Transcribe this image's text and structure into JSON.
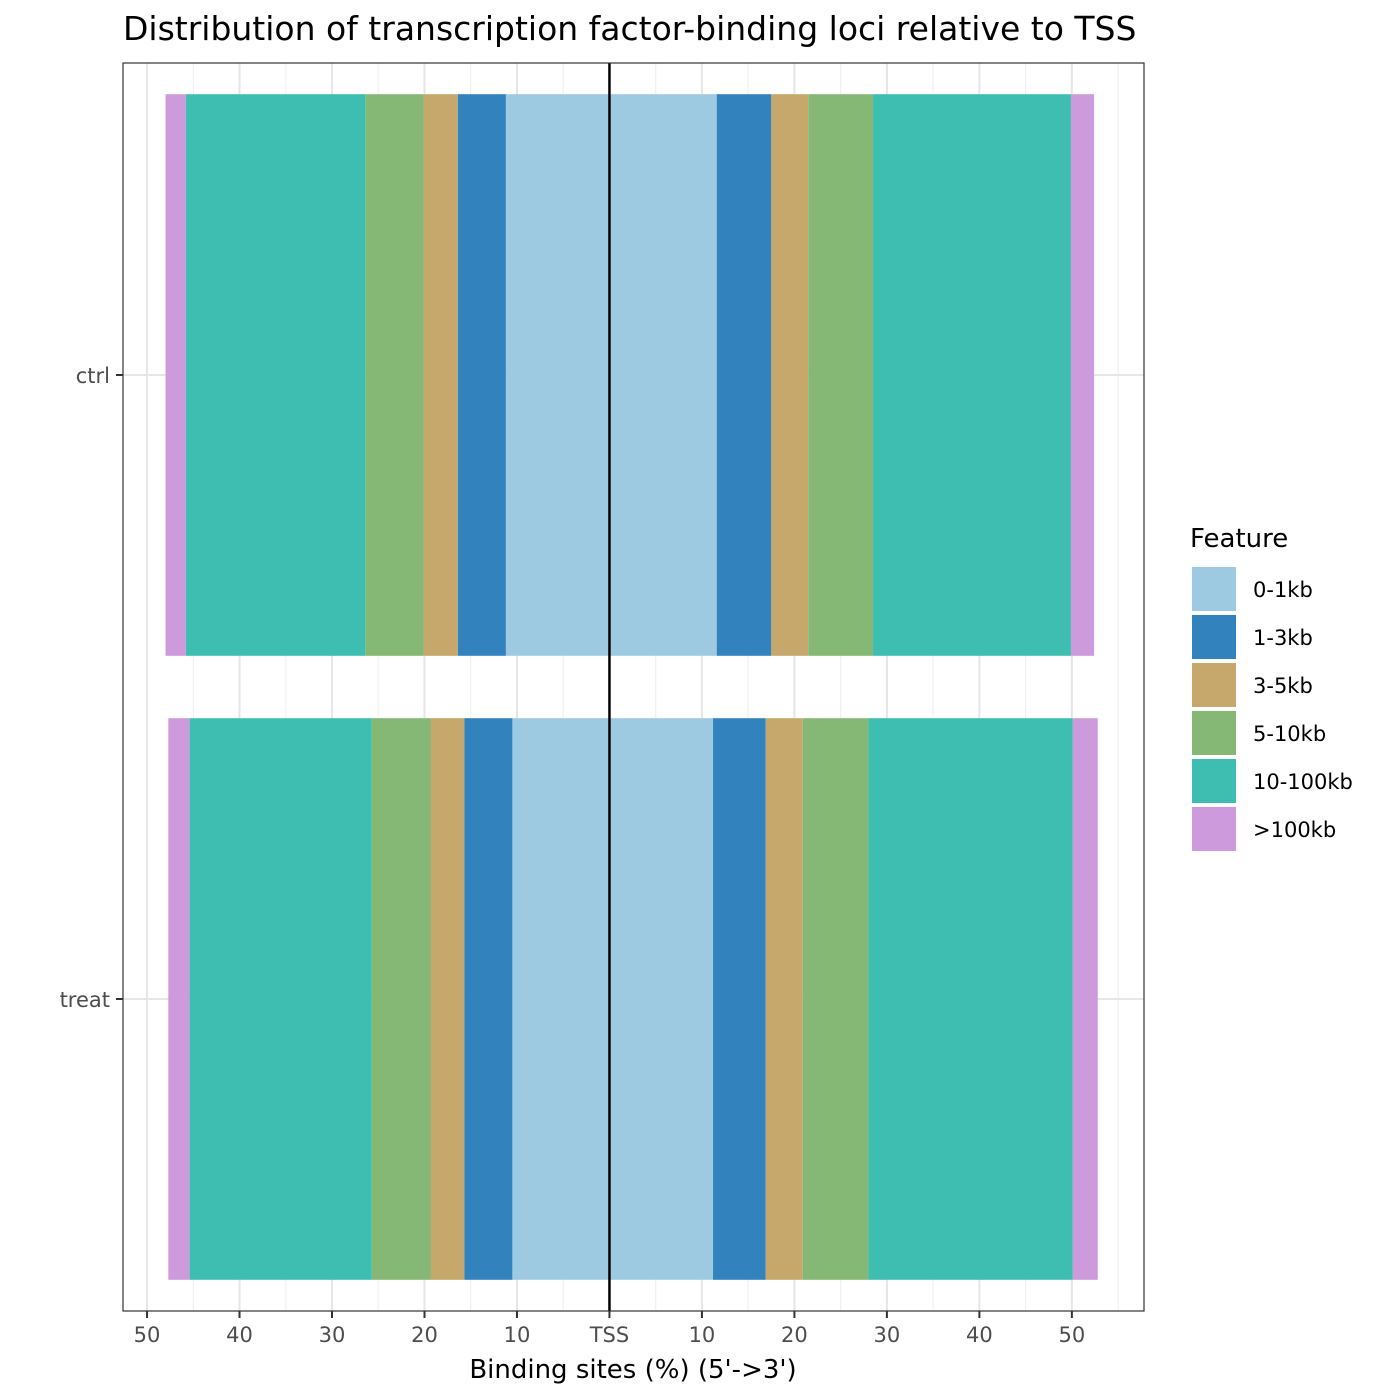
{
  "chart_data": {
    "type": "bar",
    "orientation": "horizontal",
    "stacked": true,
    "diverging": true,
    "title": "Distribution of transcription factor-binding loci relative to TSS",
    "xlabel": "Binding sites (%) (5'->3')",
    "ylabel": "",
    "categories": [
      "ctrl",
      "treat"
    ],
    "x_ticks": [
      {
        "value": -50,
        "label": "50"
      },
      {
        "value": -40,
        "label": "40"
      },
      {
        "value": -30,
        "label": "30"
      },
      {
        "value": -20,
        "label": "20"
      },
      {
        "value": -10,
        "label": "10"
      },
      {
        "value": 0,
        "label": "TSS"
      },
      {
        "value": 10,
        "label": "10"
      },
      {
        "value": 20,
        "label": "20"
      },
      {
        "value": 30,
        "label": "30"
      },
      {
        "value": 40,
        "label": "40"
      },
      {
        "value": 50,
        "label": "50"
      }
    ],
    "xlim": [
      -52.6,
      57.8
    ],
    "legend": {
      "title": "Feature",
      "position": "right"
    },
    "grid": true,
    "series": [
      {
        "name": "0-1kb",
        "color": "#9ECAE1",
        "upstream": [
          11.2,
          10.5
        ],
        "downstream": [
          11.6,
          11.2
        ]
      },
      {
        "name": "1-3kb",
        "color": "#3182BD",
        "upstream": [
          5.2,
          5.2
        ],
        "downstream": [
          5.9,
          5.7
        ]
      },
      {
        "name": "3-5kb",
        "color": "#C6A76C",
        "upstream": [
          3.7,
          3.6
        ],
        "downstream": [
          4.0,
          4.0
        ]
      },
      {
        "name": "5-10kb",
        "color": "#85B874",
        "upstream": [
          6.3,
          6.4
        ],
        "downstream": [
          7.0,
          7.1
        ]
      },
      {
        "name": "10-100kb",
        "color": "#3DBEB0",
        "upstream": [
          19.4,
          19.7
        ],
        "downstream": [
          21.4,
          22.1
        ]
      },
      {
        "name": ">100kb",
        "color": "#CD9BDB",
        "upstream": [
          2.2,
          2.3
        ],
        "downstream": [
          2.5,
          2.7
        ]
      }
    ],
    "reference_line": {
      "value": 0,
      "color": "#000000"
    }
  }
}
